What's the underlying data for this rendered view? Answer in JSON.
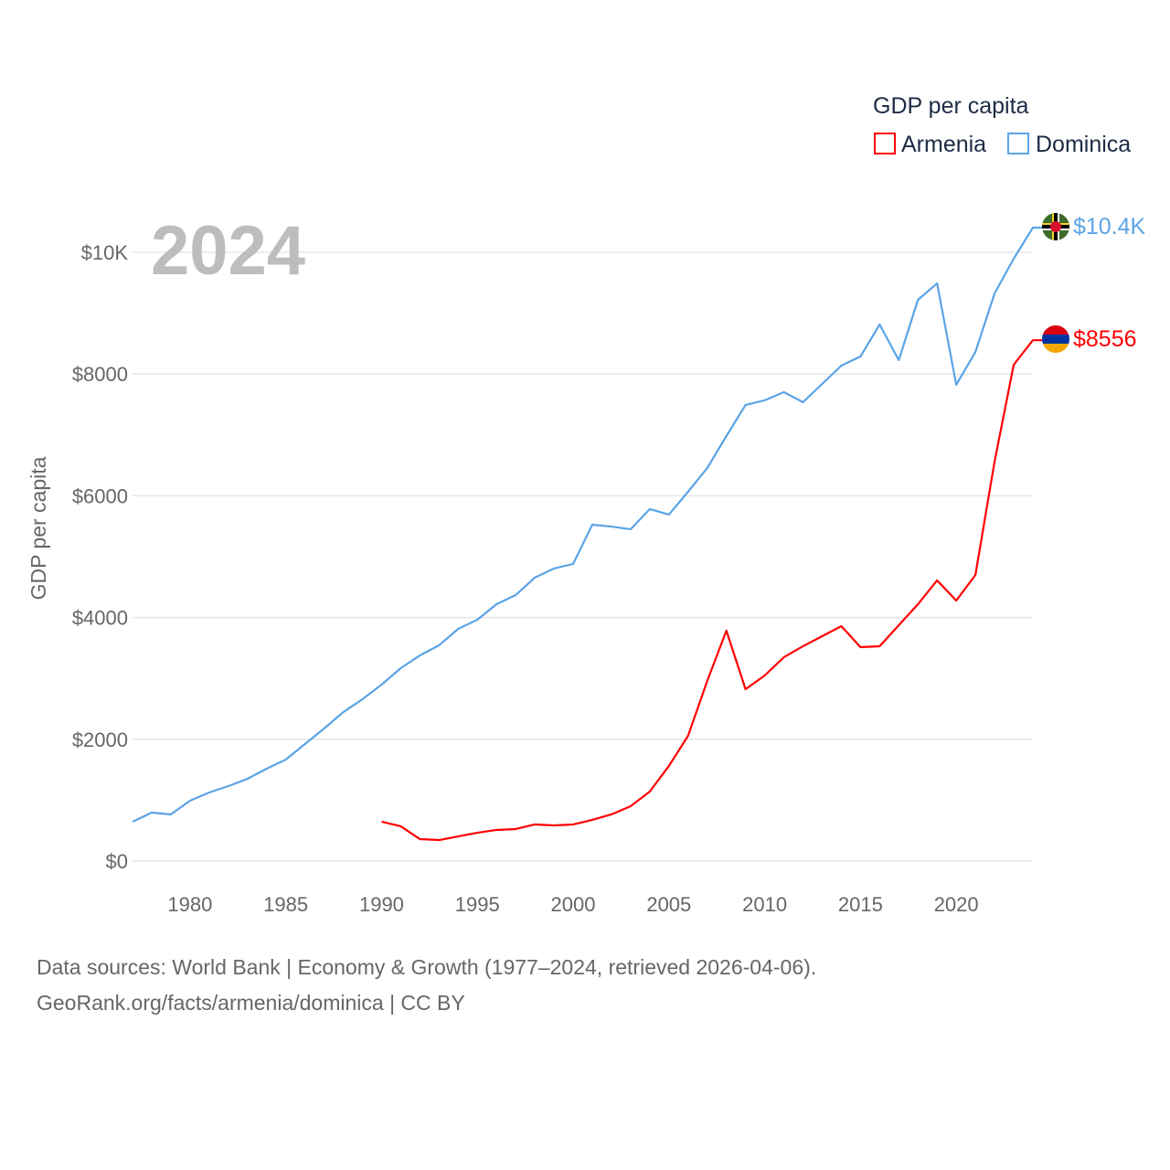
{
  "chart_data": {
    "type": "line",
    "title": "GDP per capita",
    "year_label": "2024",
    "ylabel": "GDP per capita",
    "xlabel": "",
    "xlim": [
      1977,
      2024
    ],
    "ylim": [
      0,
      10000
    ],
    "x_ticks": [
      "1980",
      "1985",
      "1990",
      "1995",
      "2000",
      "2005",
      "2010",
      "2015",
      "2020"
    ],
    "y_ticks": [
      {
        "value": 0,
        "label": "$0"
      },
      {
        "value": 2000,
        "label": "$2000"
      },
      {
        "value": 4000,
        "label": "$4000"
      },
      {
        "value": 6000,
        "label": "$6000"
      },
      {
        "value": 8000,
        "label": "$8000"
      },
      {
        "value": 10000,
        "label": "$10K"
      }
    ],
    "grid": true,
    "legend_position": "top-right",
    "series": [
      {
        "name": "Armenia",
        "color": "#ff0000",
        "end_label": "$8556",
        "flag": "armenia-flag-icon",
        "x": [
          1990,
          1991,
          1992,
          1993,
          1994,
          1995,
          1996,
          1997,
          1998,
          1999,
          2000,
          2001,
          2002,
          2003,
          2004,
          2005,
          2006,
          2007,
          2008,
          2009,
          2010,
          2011,
          2012,
          2013,
          2014,
          2015,
          2016,
          2017,
          2018,
          2019,
          2020,
          2021,
          2022,
          2023,
          2024
        ],
        "values": [
          646,
          571,
          360,
          345,
          405,
          465,
          511,
          526,
          601,
          586,
          601,
          676,
          766,
          901,
          1141,
          1562,
          2057,
          2958,
          3784,
          2823,
          3048,
          3348,
          3529,
          3694,
          3859,
          3514,
          3529,
          3874,
          4219,
          4610,
          4279,
          4700,
          6562,
          8153,
          8556
        ]
      },
      {
        "name": "Dominica",
        "color": "#5ba4e6",
        "end_label": "$10.4K",
        "flag": "dominica-flag-icon",
        "x": [
          1977,
          1978,
          1979,
          1980,
          1981,
          1982,
          1983,
          1984,
          1985,
          1986,
          1987,
          1988,
          1989,
          1990,
          1991,
          1992,
          1993,
          1994,
          1995,
          1996,
          1997,
          1998,
          1999,
          2000,
          2001,
          2002,
          2003,
          2004,
          2005,
          2006,
          2007,
          2008,
          2009,
          2010,
          2011,
          2012,
          2013,
          2014,
          2015,
          2016,
          2017,
          2018,
          2019,
          2020,
          2021,
          2022,
          2023,
          2024
        ],
        "values": [
          646,
          796,
          766,
          991,
          1126,
          1231,
          1351,
          1517,
          1667,
          1922,
          2177,
          2447,
          2658,
          2898,
          3168,
          3378,
          3544,
          3814,
          3964,
          4219,
          4369,
          4655,
          4805,
          4880,
          5526,
          5495,
          5450,
          5781,
          5691,
          6066,
          6456,
          6982,
          7492,
          7568,
          7703,
          7538,
          7838,
          8138,
          8288,
          8814,
          8228,
          9219,
          9489,
          7823,
          8363,
          9324,
          9895,
          10405
        ]
      }
    ]
  },
  "footer": {
    "line1": "Data sources: World Bank | Economy & Growth (1977–2024, retrieved 2026-04-06).",
    "line2": "GeoRank.org/facts/armenia/dominica | CC BY"
  }
}
